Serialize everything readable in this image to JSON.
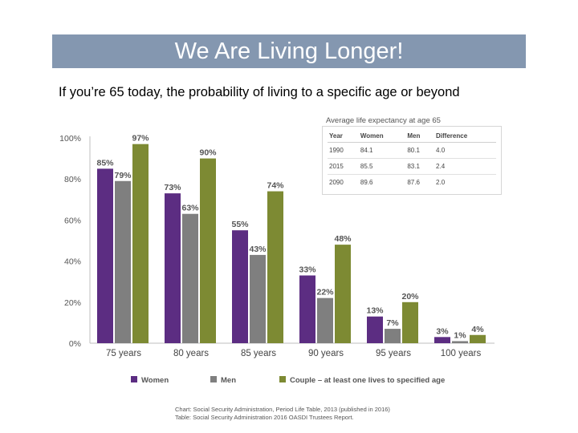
{
  "slide": {
    "title": "We Are Living Longer!",
    "subtitle": "If you’re 65 today, the probability of living to a specific age or beyond"
  },
  "colors": {
    "women": "#5c2d82",
    "men": "#7f7f7f",
    "couple": "#7d8a33",
    "title_bar": "#8497b0"
  },
  "chart_data": {
    "type": "bar",
    "categories": [
      "75 years",
      "80 years",
      "85 years",
      "90 years",
      "95 years",
      "100 years"
    ],
    "series": [
      {
        "name": "Women",
        "values": [
          85,
          73,
          55,
          33,
          13,
          3
        ]
      },
      {
        "name": "Men",
        "values": [
          79,
          63,
          43,
          22,
          7,
          1
        ]
      },
      {
        "name": "Couple – at least one lives to specified age",
        "values": [
          97,
          90,
          74,
          48,
          20,
          4
        ]
      }
    ],
    "yticks": [
      "100%",
      "80%",
      "60%",
      "40%",
      "20%",
      "0%"
    ],
    "ylim": [
      0,
      100
    ],
    "legend_position": "bottom"
  },
  "inset_table": {
    "title": "Average life expectancy at age 65",
    "headers": [
      "Year",
      "Women",
      "Men",
      "Difference"
    ],
    "rows": [
      [
        "1990",
        "84.1",
        "80.1",
        "4.0"
      ],
      [
        "2015",
        "85.5",
        "83.1",
        "2.4"
      ],
      [
        "2090",
        "89.6",
        "87.6",
        "2.0"
      ]
    ]
  },
  "source": {
    "line1": "Chart: Social Security Administration, Period Life Table, 2013 (published in 2016)",
    "line2": "Table: Social Security Administration 2016 OASDI Trustees Report."
  }
}
